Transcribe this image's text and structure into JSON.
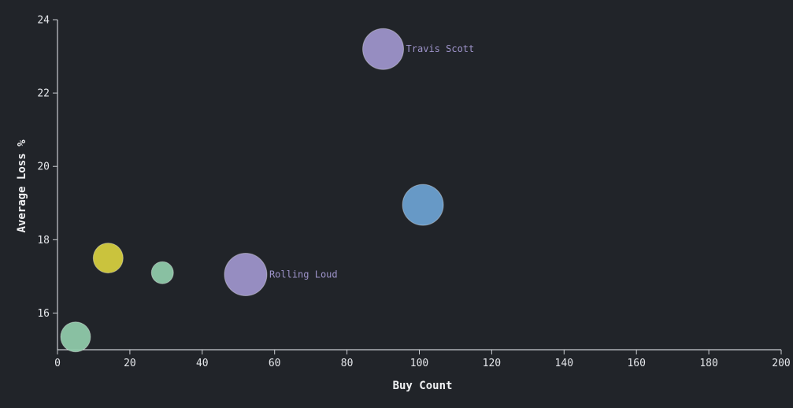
{
  "chart_data": {
    "type": "scatter",
    "title": "",
    "xlabel": "Buy Count",
    "ylabel": "Average Loss %",
    "xlim": [
      0,
      200
    ],
    "ylim": [
      15,
      24
    ],
    "xticks": [
      0,
      20,
      40,
      60,
      80,
      100,
      120,
      140,
      160,
      180,
      200
    ],
    "yticks": [
      16,
      18,
      20,
      22,
      24
    ],
    "grid": false,
    "points": [
      {
        "x": 5,
        "y": 15.35,
        "size": 19,
        "color": "#8fc9a9",
        "label": ""
      },
      {
        "x": 14,
        "y": 17.5,
        "size": 19,
        "color": "#d4cc3e",
        "label": ""
      },
      {
        "x": 29,
        "y": 17.1,
        "size": 14,
        "color": "#8fc9a9",
        "label": ""
      },
      {
        "x": 52,
        "y": 17.05,
        "size": 27,
        "color": "#9d93c9",
        "label": "Rolling Loud"
      },
      {
        "x": 90,
        "y": 23.2,
        "size": 26,
        "color": "#9d93c9",
        "label": "Travis Scott"
      },
      {
        "x": 101,
        "y": 18.95,
        "size": 26,
        "color": "#6ba0cf",
        "label": ""
      }
    ]
  }
}
